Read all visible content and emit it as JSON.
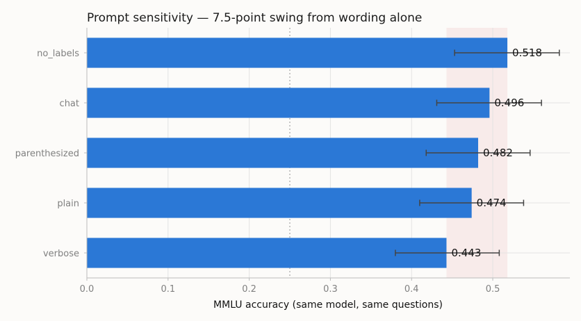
{
  "chart_data": {
    "type": "bar",
    "orientation": "horizontal",
    "title": "Prompt sensitivity — 7.5-point swing from wording alone",
    "xlabel": "MMLU accuracy (same model, same questions)",
    "ylabel": "",
    "xlim": [
      0,
      0.595
    ],
    "x_ticks": [
      0.0,
      0.1,
      0.2,
      0.3,
      0.4,
      0.5
    ],
    "x_tick_labels": [
      "0.0",
      "0.1",
      "0.2",
      "0.3",
      "0.4",
      "0.5"
    ],
    "categories": [
      "no_labels",
      "chat",
      "parenthesized",
      "plain",
      "verbose"
    ],
    "values": [
      0.518,
      0.496,
      0.482,
      0.474,
      0.443
    ],
    "value_labels": [
      "0.518",
      "0.496",
      "0.482",
      "0.474",
      "0.443"
    ],
    "error_bars": [
      {
        "low": 0.453,
        "high": 0.582
      },
      {
        "low": 0.431,
        "high": 0.56
      },
      {
        "low": 0.418,
        "high": 0.546
      },
      {
        "low": 0.41,
        "high": 0.538
      },
      {
        "low": 0.38,
        "high": 0.508
      }
    ],
    "reference_line": {
      "x": 0.25,
      "style": "dotted"
    },
    "shaded_band": {
      "from": 0.443,
      "to": 0.518
    },
    "grid": true,
    "colors": {
      "bar": "#2b78d6",
      "error_bar": "#444444",
      "band": "#f5d6d8",
      "grid": "#e3e3e3",
      "reference": "#b5b5b5"
    }
  }
}
